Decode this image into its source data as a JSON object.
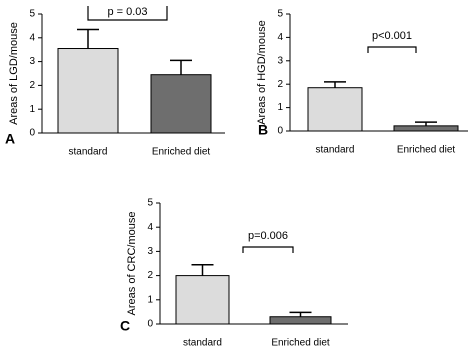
{
  "chart_data": [
    {
      "type": "bar",
      "panel_label": "A",
      "ylabel": "Areas of LGD/mouse",
      "categories": [
        "standard",
        "Enriched diet"
      ],
      "values": [
        3.55,
        2.45
      ],
      "errors": [
        0.8,
        0.6
      ],
      "colors": [
        "#dcdcdc",
        "#6e6e6e"
      ],
      "ylim": [
        0,
        5
      ],
      "yticks": [
        0,
        1,
        2,
        3,
        4,
        5
      ],
      "annotation": "p = 0.03"
    },
    {
      "type": "bar",
      "panel_label": "B",
      "ylabel": "Areas of HGD/mouse",
      "categories": [
        "standard",
        "Enriched diet"
      ],
      "values": [
        1.85,
        0.22
      ],
      "errors": [
        0.25,
        0.16
      ],
      "colors": [
        "#dcdcdc",
        "#6e6e6e"
      ],
      "ylim": [
        0,
        5
      ],
      "yticks": [
        0,
        1,
        2,
        3,
        4,
        5
      ],
      "annotation": "p<0.001"
    },
    {
      "type": "bar",
      "panel_label": "C",
      "ylabel": "Areas of CRC/mouse",
      "categories": [
        "standard",
        "Enriched diet"
      ],
      "values": [
        2.0,
        0.3
      ],
      "errors": [
        0.45,
        0.18
      ],
      "colors": [
        "#dcdcdc",
        "#6e6e6e"
      ],
      "ylim": [
        0,
        5
      ],
      "yticks": [
        0,
        1,
        2,
        3,
        4,
        5
      ],
      "annotation": "p=0.006"
    }
  ]
}
